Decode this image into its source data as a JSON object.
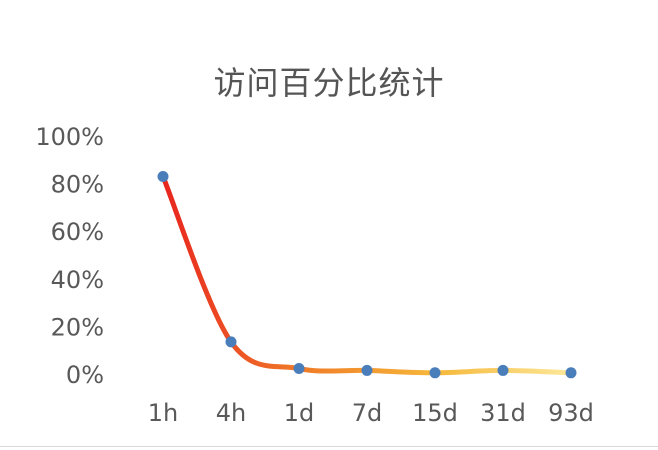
{
  "chart_data": {
    "type": "line",
    "title": "访问百分比统计",
    "categories": [
      "1h",
      "4h",
      "1d",
      "7d",
      "15d",
      "31d",
      "93d"
    ],
    "values": [
      83,
      13.5,
      2.3,
      1.5,
      0.5,
      1.5,
      0.5
    ],
    "ylim": [
      0,
      100
    ],
    "y_ticks": [
      "0%",
      "20%",
      "40%",
      "60%",
      "80%",
      "100%"
    ],
    "y_tick_values": [
      0,
      20,
      40,
      60,
      80,
      100
    ],
    "grid": false,
    "legend": "none",
    "line_gradient": [
      "#e8251f",
      "#f07a28",
      "#f6b83a",
      "#fce89a"
    ],
    "marker_color": "#4a7ebb",
    "text_color": "#595959"
  }
}
